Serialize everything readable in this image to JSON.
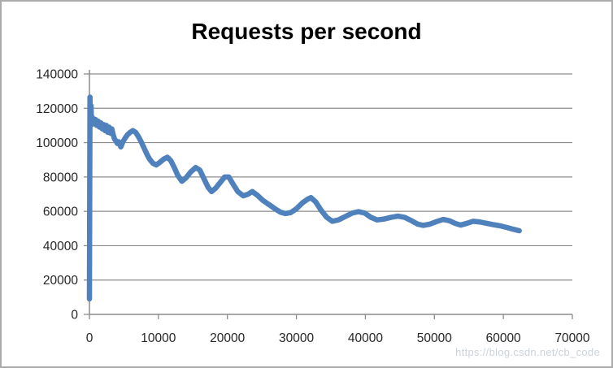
{
  "chart_data": {
    "type": "line",
    "title": "Requests per second",
    "xlabel": "",
    "ylabel": "",
    "xlim": [
      0,
      70000
    ],
    "ylim": [
      0,
      140000
    ],
    "x_ticks": [
      0,
      10000,
      20000,
      30000,
      40000,
      50000,
      60000,
      70000
    ],
    "y_ticks": [
      0,
      20000,
      40000,
      60000,
      80000,
      100000,
      120000,
      140000
    ],
    "grid": true,
    "legend": "none",
    "colors": {
      "axis": "#8c8c8c",
      "grid": "#8c8c8c",
      "tick_label": "#262626",
      "title": "#000000",
      "background": "#ffffff",
      "border": "#ababab"
    },
    "series": [
      {
        "name": "Requests per second",
        "color": "#4F81BD",
        "line_width": 6.5,
        "points": [
          [
            0,
            9000
          ],
          [
            80,
            126500
          ],
          [
            150,
            111000
          ],
          [
            230,
            121500
          ],
          [
            300,
            110500
          ],
          [
            450,
            114500
          ],
          [
            650,
            111000
          ],
          [
            850,
            113500
          ],
          [
            1050,
            110000
          ],
          [
            1250,
            112500
          ],
          [
            1450,
            109000
          ],
          [
            1650,
            111500
          ],
          [
            1850,
            108000
          ],
          [
            2050,
            110500
          ],
          [
            2250,
            107000
          ],
          [
            2450,
            110000
          ],
          [
            2650,
            106000
          ],
          [
            2850,
            109000
          ],
          [
            3050,
            105500
          ],
          [
            3250,
            108000
          ],
          [
            3450,
            104500
          ],
          [
            3650,
            102000
          ],
          [
            3850,
            101000
          ],
          [
            4050,
            99500
          ],
          [
            4250,
            100500
          ],
          [
            4550,
            97500
          ],
          [
            4850,
            100500
          ],
          [
            5150,
            102500
          ],
          [
            5500,
            104500
          ],
          [
            5900,
            106000
          ],
          [
            6300,
            107000
          ],
          [
            6700,
            106000
          ],
          [
            7100,
            103500
          ],
          [
            7500,
            100500
          ],
          [
            7900,
            97000
          ],
          [
            8300,
            93500
          ],
          [
            8700,
            90500
          ],
          [
            9200,
            88000
          ],
          [
            9700,
            87000
          ],
          [
            10200,
            88500
          ],
          [
            10800,
            90500
          ],
          [
            11300,
            91500
          ],
          [
            11800,
            89500
          ],
          [
            12300,
            85500
          ],
          [
            12800,
            81000
          ],
          [
            13400,
            77500
          ],
          [
            14000,
            79500
          ],
          [
            14700,
            83000
          ],
          [
            15400,
            85500
          ],
          [
            16000,
            84000
          ],
          [
            16600,
            79000
          ],
          [
            17200,
            74000
          ],
          [
            17700,
            71500
          ],
          [
            18300,
            73500
          ],
          [
            19000,
            77000
          ],
          [
            19600,
            80000
          ],
          [
            20200,
            80000
          ],
          [
            20800,
            76000
          ],
          [
            21500,
            71500
          ],
          [
            22300,
            69000
          ],
          [
            23000,
            70000
          ],
          [
            23600,
            71500
          ],
          [
            24300,
            69500
          ],
          [
            25100,
            66500
          ],
          [
            26000,
            64000
          ],
          [
            26900,
            61500
          ],
          [
            27700,
            59500
          ],
          [
            28400,
            58700
          ],
          [
            29200,
            59300
          ],
          [
            30000,
            61500
          ],
          [
            30900,
            65000
          ],
          [
            31600,
            67000
          ],
          [
            32100,
            68000
          ],
          [
            32800,
            65500
          ],
          [
            33600,
            60500
          ],
          [
            34400,
            56500
          ],
          [
            35200,
            54200
          ],
          [
            36100,
            55000
          ],
          [
            37100,
            57000
          ],
          [
            38100,
            59000
          ],
          [
            39000,
            59800
          ],
          [
            39900,
            59000
          ],
          [
            40800,
            56500
          ],
          [
            41700,
            55000
          ],
          [
            42700,
            55500
          ],
          [
            43700,
            56500
          ],
          [
            44700,
            57200
          ],
          [
            45700,
            56500
          ],
          [
            46700,
            54500
          ],
          [
            47600,
            52500
          ],
          [
            48400,
            51800
          ],
          [
            49300,
            52500
          ],
          [
            50300,
            54000
          ],
          [
            51300,
            55300
          ],
          [
            52200,
            54500
          ],
          [
            53000,
            53000
          ],
          [
            53800,
            52000
          ],
          [
            54700,
            53000
          ],
          [
            55600,
            54200
          ],
          [
            56600,
            53800
          ],
          [
            57600,
            53000
          ],
          [
            58600,
            52200
          ],
          [
            59600,
            51500
          ],
          [
            60600,
            50500
          ],
          [
            61500,
            49500
          ],
          [
            62300,
            48700
          ]
        ]
      }
    ]
  },
  "watermark": {
    "text": "https://blog.csdn.net/cb_code",
    "color": "#cbd3da"
  }
}
